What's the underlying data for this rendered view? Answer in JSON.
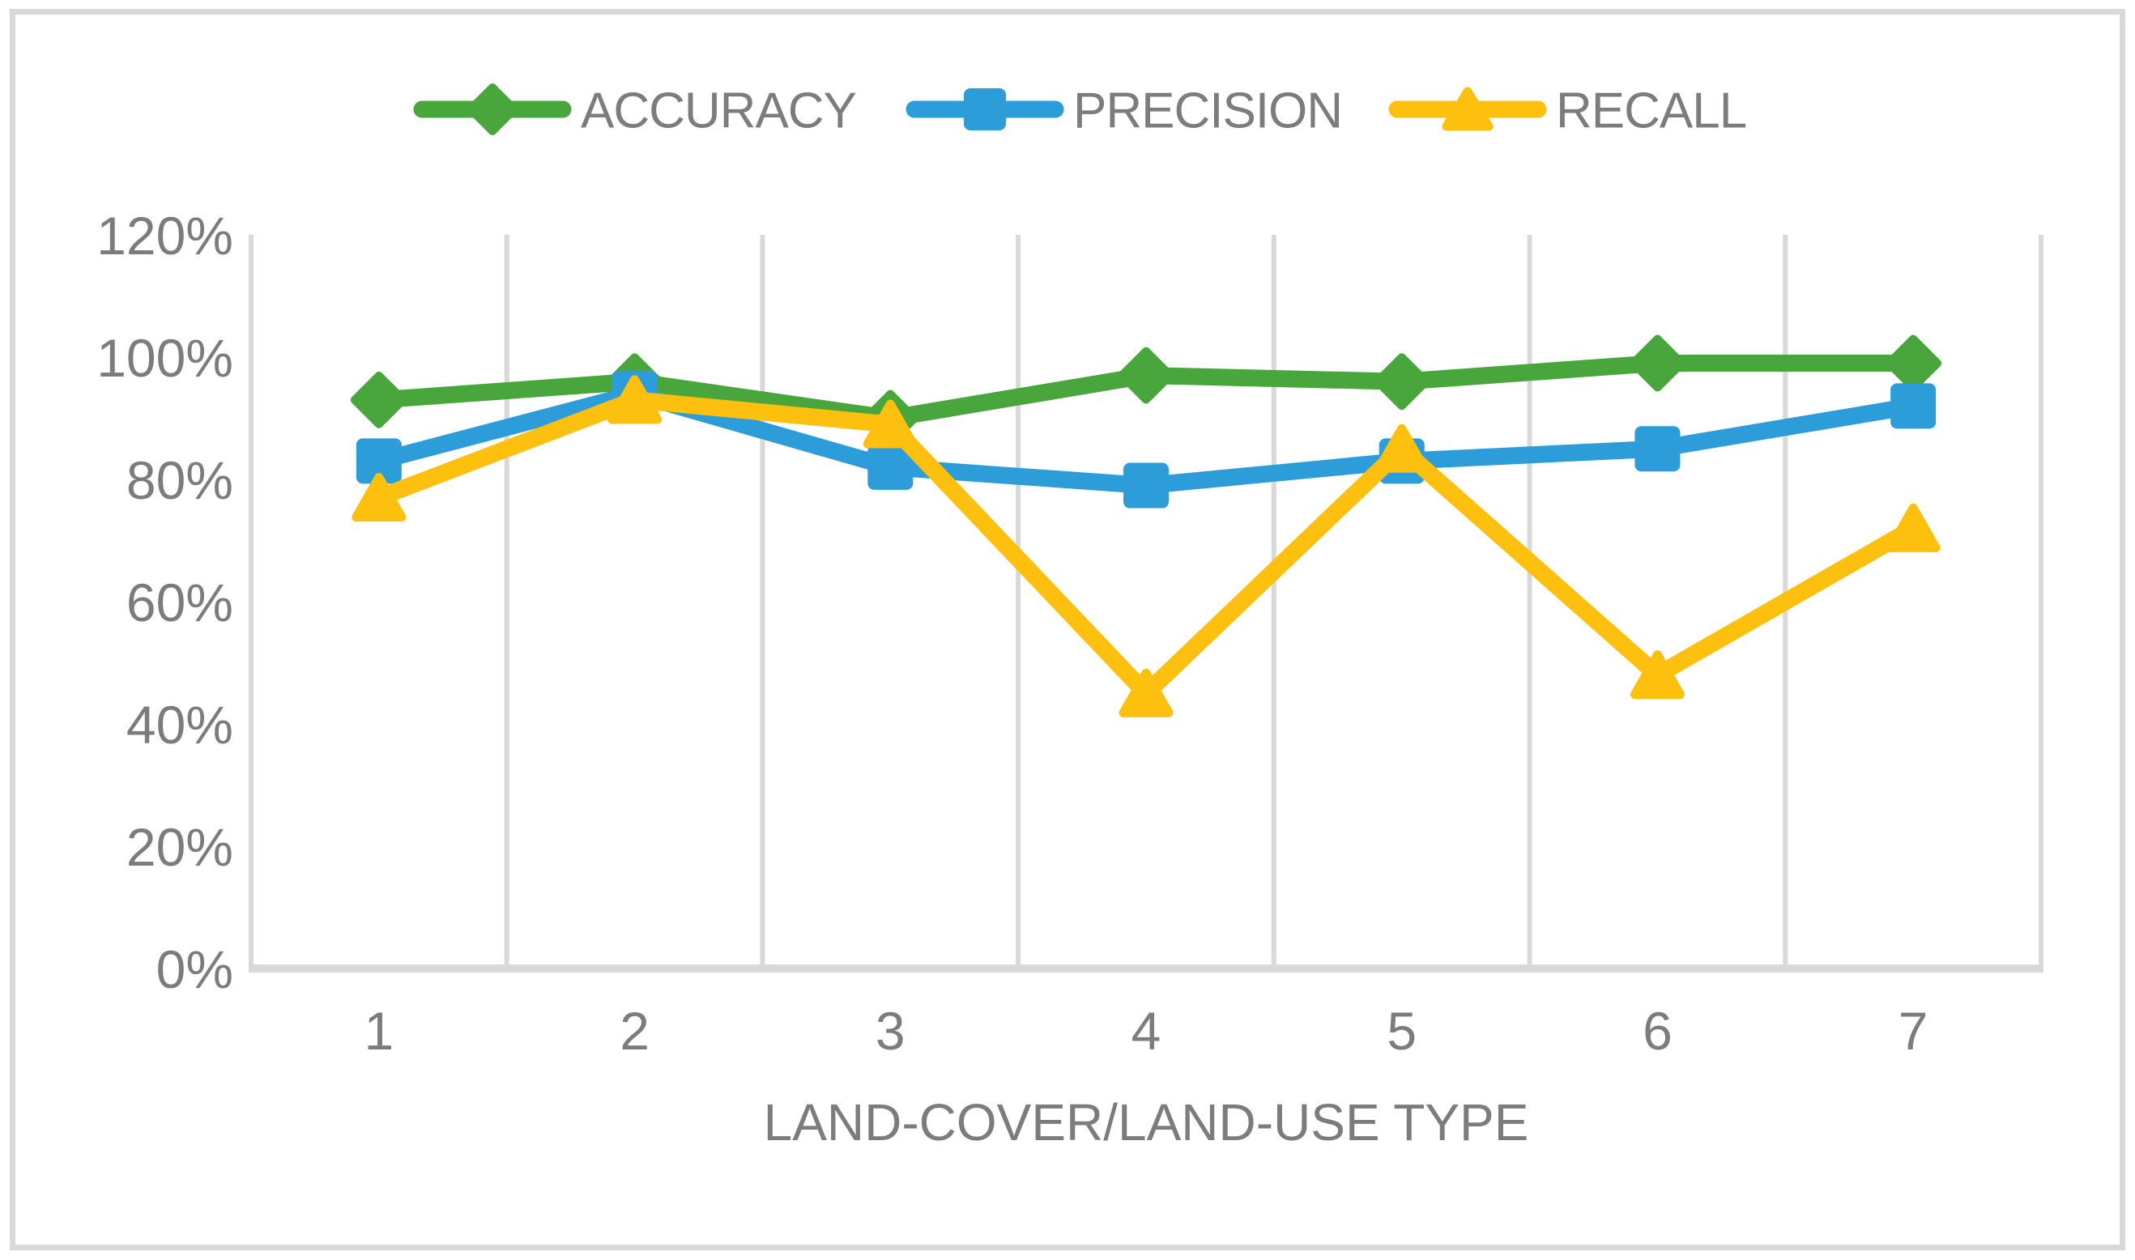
{
  "chart_data": {
    "type": "line",
    "title": "",
    "xlabel": "LAND-COVER/LAND-USE TYPE",
    "ylabel": "",
    "categories": [
      "1",
      "2",
      "3",
      "4",
      "5",
      "6",
      "7"
    ],
    "y_ticks": [
      "0%",
      "20%",
      "40%",
      "60%",
      "80%",
      "100%",
      "120%"
    ],
    "ylim": [
      0,
      120
    ],
    "y_tick_step": 20,
    "y_unit": "percent",
    "grid": "vertical-only",
    "legend_position": "top-center",
    "series": [
      {
        "name": "ACCURACY",
        "marker": "diamond",
        "color": "#48a63d",
        "values": [
          93,
          96,
          90,
          97,
          96,
          99,
          99
        ]
      },
      {
        "name": "PRECISION",
        "marker": "square",
        "color": "#2c9dd8",
        "values": [
          83,
          94,
          82,
          79,
          83,
          85,
          92
        ]
      },
      {
        "name": "RECALL",
        "marker": "triangle",
        "color": "#fec00e",
        "values": [
          77,
          93,
          89,
          45,
          85,
          48,
          72
        ]
      }
    ]
  },
  "colors": {
    "background": "#ffffff",
    "text": "#7c7c7c",
    "gridline": "#d9d9d9",
    "axis_line": "#d9d9d9",
    "figure_border": "#d9d9d9"
  }
}
